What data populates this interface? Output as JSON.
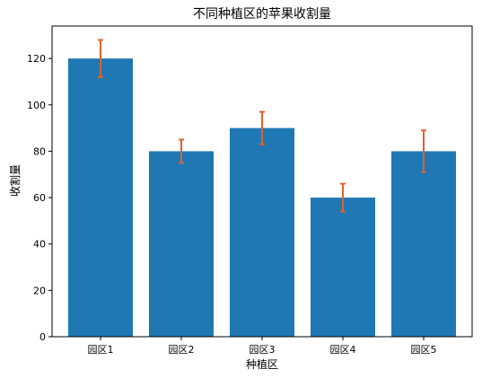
{
  "chart_data": {
    "type": "bar",
    "title": "不同种植区的苹果收割量",
    "xlabel": "种植区",
    "ylabel": "收割量",
    "categories": [
      "园区1",
      "园区2",
      "园区3",
      "园区4",
      "园区5"
    ],
    "values": [
      120,
      80,
      90,
      60,
      80
    ],
    "errors": [
      8,
      5,
      7,
      6,
      9
    ],
    "ylim": [
      0,
      134
    ],
    "yticks": [
      0,
      20,
      40,
      60,
      80,
      100,
      120
    ],
    "grid": false,
    "legend": "none",
    "bar_color": "#1f77b4",
    "error_color": "#e0622a"
  }
}
